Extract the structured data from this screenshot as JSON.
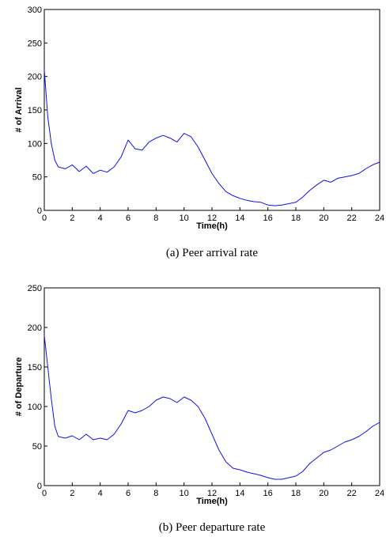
{
  "chart_data": [
    {
      "type": "line",
      "caption": "(a) Peer arrival rate",
      "xlabel": "Time(h)",
      "ylabel": "# of Arrival",
      "xlim": [
        0,
        24
      ],
      "ylim": [
        0,
        300
      ],
      "xticks": [
        0,
        2,
        4,
        6,
        8,
        10,
        12,
        14,
        16,
        18,
        20,
        22,
        24
      ],
      "yticks": [
        0,
        50,
        100,
        150,
        200,
        250,
        300
      ],
      "grid": false,
      "color": "#1010ee",
      "x": [
        0,
        0.25,
        0.5,
        0.75,
        1,
        1.5,
        2,
        2.5,
        3,
        3.5,
        4,
        4.5,
        5,
        5.5,
        6,
        6.5,
        7,
        7.5,
        8,
        8.5,
        9,
        9.5,
        10,
        10.5,
        11,
        11.5,
        12,
        12.5,
        13,
        13.5,
        14,
        14.5,
        15,
        15.5,
        16,
        16.5,
        17,
        17.5,
        18,
        18.5,
        19,
        19.5,
        20,
        20.5,
        21,
        21.5,
        22,
        22.5,
        23,
        23.5,
        24
      ],
      "values": [
        210,
        140,
        100,
        75,
        65,
        62,
        68,
        58,
        66,
        55,
        60,
        57,
        65,
        80,
        105,
        92,
        90,
        102,
        108,
        112,
        108,
        102,
        115,
        110,
        95,
        75,
        55,
        40,
        28,
        22,
        18,
        15,
        13,
        12,
        8,
        7,
        8,
        10,
        12,
        20,
        30,
        38,
        45,
        42,
        48,
        50,
        52,
        55,
        62,
        68,
        72
      ]
    },
    {
      "type": "line",
      "caption": "(b) Peer departure rate",
      "xlabel": "Time(h)",
      "ylabel": "# of Departure",
      "xlim": [
        0,
        24
      ],
      "ylim": [
        0,
        250
      ],
      "xticks": [
        0,
        2,
        4,
        6,
        8,
        10,
        12,
        14,
        16,
        18,
        20,
        22,
        24
      ],
      "yticks": [
        0,
        50,
        100,
        150,
        200,
        250
      ],
      "grid": false,
      "color": "#1010ee",
      "x": [
        0,
        0.25,
        0.5,
        0.75,
        1,
        1.5,
        2,
        2.5,
        3,
        3.5,
        4,
        4.5,
        5,
        5.5,
        6,
        6.5,
        7,
        7.5,
        8,
        8.5,
        9,
        9.5,
        10,
        10.5,
        11,
        11.5,
        12,
        12.5,
        13,
        13.5,
        14,
        14.5,
        15,
        15.5,
        16,
        16.5,
        17,
        17.5,
        18,
        18.5,
        19,
        19.5,
        20,
        20.5,
        21,
        21.5,
        22,
        22.5,
        23,
        23.5,
        24
      ],
      "values": [
        190,
        150,
        110,
        75,
        62,
        60,
        63,
        58,
        65,
        58,
        60,
        58,
        65,
        78,
        95,
        92,
        95,
        100,
        108,
        112,
        110,
        105,
        112,
        108,
        100,
        85,
        65,
        45,
        30,
        22,
        20,
        17,
        15,
        13,
        10,
        8,
        8,
        10,
        12,
        18,
        28,
        35,
        42,
        45,
        50,
        55,
        58,
        62,
        68,
        75,
        80
      ]
    }
  ]
}
